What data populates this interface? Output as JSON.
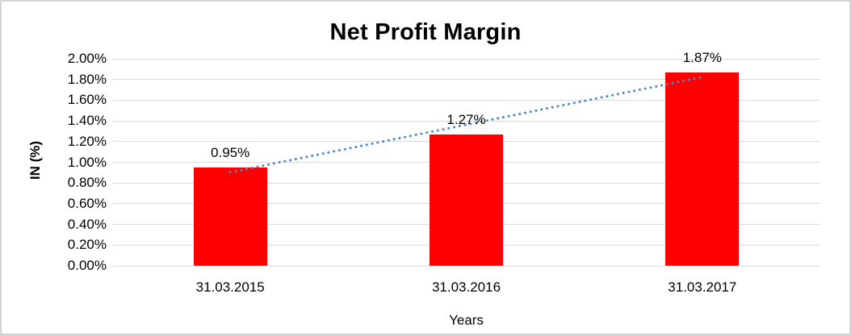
{
  "chart_data": {
    "type": "bar",
    "title": "Net Profit Margin",
    "xlabel": "Years",
    "ylabel": "IN (%)",
    "categories": [
      "31.03.2015",
      "31.03.2016",
      "31.03.2017"
    ],
    "values": [
      0.95,
      1.27,
      1.87
    ],
    "value_labels": [
      "0.95%",
      "1.27%",
      "1.87%"
    ],
    "ylim": [
      0,
      2.0
    ],
    "ytick_step": 0.2,
    "ytick_labels": [
      "0.00%",
      "0.20%",
      "0.40%",
      "0.60%",
      "0.80%",
      "1.00%",
      "1.20%",
      "1.40%",
      "1.60%",
      "1.80%",
      "2.00%"
    ],
    "grid": true,
    "legend_position": "none",
    "bar_color": "#FF0000",
    "gridline_color": "#D9D9D9",
    "text_color": "#000000",
    "frame_border_color": "#D5D5D5",
    "trendline": {
      "type": "linear",
      "style": "dotted",
      "color": "#4A86C8",
      "start_value": 0.903,
      "end_value": 1.823
    }
  }
}
